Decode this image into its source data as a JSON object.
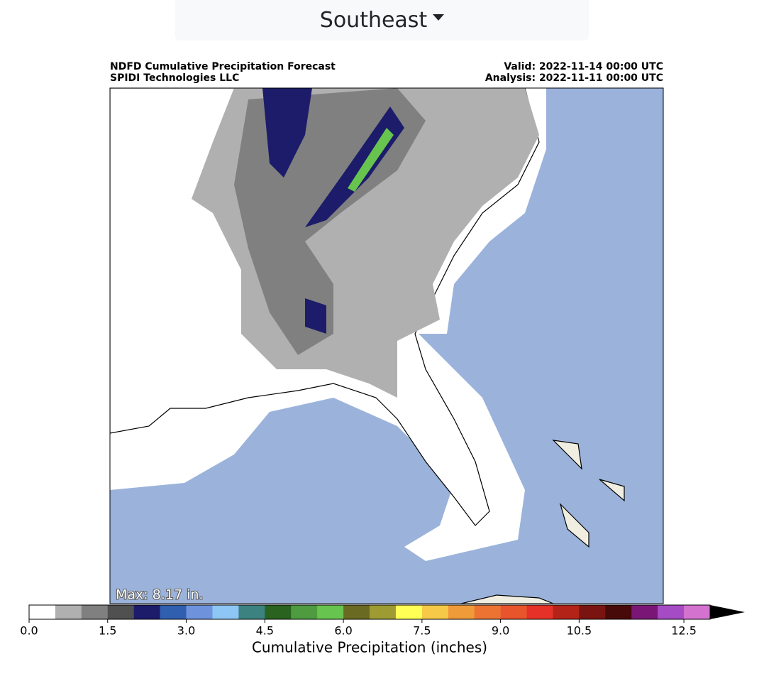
{
  "header": {
    "region": "Southeast"
  },
  "map": {
    "title": "NDFD Cumulative Precipitation Forecast",
    "subtitle": "SPIDI Technologies LLC",
    "valid": "Valid: 2022-11-14 00:00 UTC",
    "analysis": "Analysis: 2022-11-11 00:00 UTC",
    "max_label": "Max: 8.17 in."
  },
  "colorbar": {
    "label": "Cumulative Precipitation (inches)",
    "lim": [
      0,
      13
    ],
    "colors": [
      "#ffffff",
      "#b0b0b0",
      "#808080",
      "#505050",
      "#1c1c6b",
      "#2f5fae",
      "#6e93dc",
      "#8ec6f5",
      "#3b8280",
      "#2a6320",
      "#4f9b40",
      "#67c44e",
      "#6b6a22",
      "#9e9b32",
      "#ffff55",
      "#f6ca48",
      "#f09b3a",
      "#ec7332",
      "#e8542c",
      "#e53127",
      "#b42318",
      "#7a1410",
      "#470a08",
      "#7a1675",
      "#a54cc4",
      "#d472cf"
    ],
    "extend_color": "#000000",
    "ticks": [
      {
        "value": 0,
        "label": "0.0"
      },
      1.5,
      {
        "value": 3,
        "label": "3.0"
      },
      4.5,
      {
        "value": 6,
        "label": "6.0"
      },
      7.5,
      {
        "value": 9,
        "label": "9.0"
      },
      10.5,
      12.5
    ]
  }
}
